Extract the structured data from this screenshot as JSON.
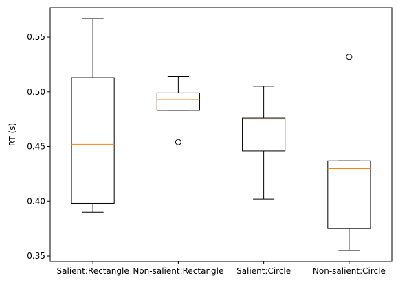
{
  "chart_data": {
    "type": "box",
    "title": "",
    "xlabel": "",
    "ylabel": "RT (s)",
    "ylim": [
      0.345,
      0.577
    ],
    "yticks": [
      0.35,
      0.4,
      0.45,
      0.5,
      0.55
    ],
    "ytick_labels": [
      "0.35",
      "0.40",
      "0.45",
      "0.50",
      "0.55"
    ],
    "categories": [
      "Salient:Rectangle",
      "Non-salient:Rectangle",
      "Salient:Circle",
      "Non-salient:Circle"
    ],
    "boxes": [
      {
        "whisker_low": 0.39,
        "q1": 0.398,
        "median": 0.452,
        "q3": 0.513,
        "whisker_high": 0.567,
        "outliers": []
      },
      {
        "whisker_low": 0.483,
        "q1": 0.483,
        "median": 0.493,
        "q3": 0.499,
        "whisker_high": 0.514,
        "outliers": [
          0.454
        ]
      },
      {
        "whisker_low": 0.402,
        "q1": 0.446,
        "median": 0.475,
        "q3": 0.476,
        "whisker_high": 0.505,
        "outliers": []
      },
      {
        "whisker_low": 0.355,
        "q1": 0.375,
        "median": 0.43,
        "q3": 0.437,
        "whisker_high": 0.437,
        "outliers": [
          0.532
        ]
      }
    ],
    "colors": {
      "box": "#000000",
      "median": "#ff7f0e"
    }
  }
}
